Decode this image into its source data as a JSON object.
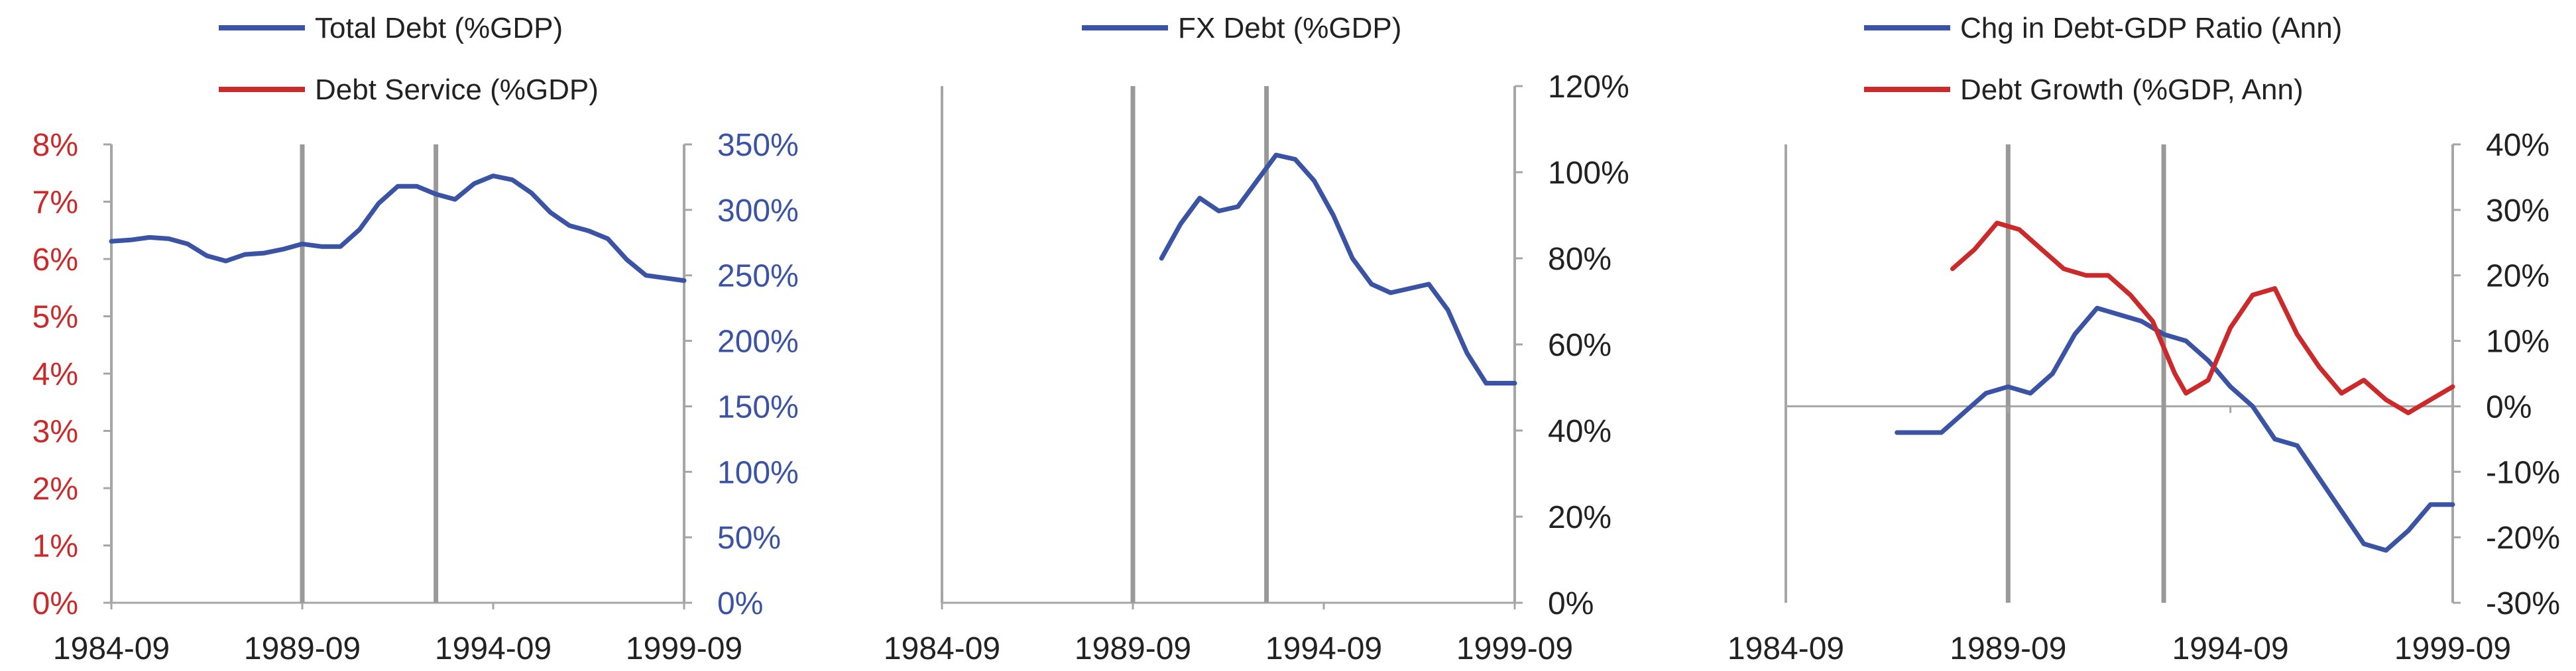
{
  "colors": {
    "blue": "#3b53a4",
    "red": "#cc2a2a",
    "axis": "#a6a6a6",
    "event": "#999999",
    "text": "#222222"
  },
  "chart_data": [
    {
      "type": "line",
      "title": "",
      "legend": {
        "placement": "top",
        "items": [
          {
            "label": "Total Debt (%GDP)",
            "color": "#3b53a4"
          },
          {
            "label": "Debt Service (%GDP)",
            "color": "#cc2a2a"
          }
        ]
      },
      "x_ticks": [
        "1984-09",
        "1989-09",
        "1994-09",
        "1999-09"
      ],
      "x_range": [
        "1984-09",
        "1999-09"
      ],
      "event_lines": [
        "1989-09",
        "1993-03"
      ],
      "y_left": {
        "range": [
          0,
          8
        ],
        "ticks": [
          "0%",
          "1%",
          "2%",
          "3%",
          "4%",
          "5%",
          "6%",
          "7%",
          "8%"
        ],
        "color": "#cc2a2a"
      },
      "y_right": {
        "range": [
          0,
          350
        ],
        "ticks": [
          "0%",
          "50%",
          "100%",
          "150%",
          "200%",
          "250%",
          "300%",
          "350%"
        ],
        "color": "#3b53a4"
      },
      "series": [
        {
          "name": "Total Debt (%GDP)",
          "axis": "right",
          "color": "#3b53a4",
          "points": [
            [
              "1984-09",
              276
            ],
            [
              "1985-03",
              277
            ],
            [
              "1985-09",
              279
            ],
            [
              "1986-03",
              278
            ],
            [
              "1986-09",
              274
            ],
            [
              "1987-03",
              265
            ],
            [
              "1987-09",
              261
            ],
            [
              "1988-03",
              266
            ],
            [
              "1988-09",
              267
            ],
            [
              "1989-03",
              270
            ],
            [
              "1989-09",
              274
            ],
            [
              "1990-03",
              272
            ],
            [
              "1990-09",
              272
            ],
            [
              "1991-03",
              285
            ],
            [
              "1991-09",
              305
            ],
            [
              "1992-03",
              318
            ],
            [
              "1992-09",
              318
            ],
            [
              "1993-03",
              312
            ],
            [
              "1993-09",
              308
            ],
            [
              "1994-03",
              320
            ],
            [
              "1994-09",
              326
            ],
            [
              "1995-03",
              323
            ],
            [
              "1995-09",
              313
            ],
            [
              "1996-03",
              298
            ],
            [
              "1996-09",
              288
            ],
            [
              "1997-03",
              284
            ],
            [
              "1997-09",
              278
            ],
            [
              "1998-03",
              262
            ],
            [
              "1998-09",
              250
            ],
            [
              "1999-03",
              248
            ],
            [
              "1999-09",
              246
            ]
          ]
        }
      ]
    },
    {
      "type": "line",
      "title": "",
      "legend": {
        "placement": "top",
        "items": [
          {
            "label": "FX Debt (%GDP)",
            "color": "#3b53a4"
          }
        ]
      },
      "x_ticks": [
        "1984-09",
        "1989-09",
        "1994-09",
        "1999-09"
      ],
      "x_range": [
        "1984-09",
        "1999-09"
      ],
      "event_lines": [
        "1989-09",
        "1993-03"
      ],
      "y_right": {
        "range": [
          0,
          120
        ],
        "ticks": [
          "0%",
          "20%",
          "40%",
          "60%",
          "80%",
          "100%",
          "120%"
        ],
        "color": "#222222"
      },
      "series": [
        {
          "name": "FX Debt (%GDP)",
          "axis": "right",
          "color": "#3b53a4",
          "points": [
            [
              "1990-06",
              80
            ],
            [
              "1990-12",
              88
            ],
            [
              "1991-06",
              94
            ],
            [
              "1991-12",
              91
            ],
            [
              "1992-06",
              92
            ],
            [
              "1992-12",
              98
            ],
            [
              "1993-06",
              104
            ],
            [
              "1993-12",
              103
            ],
            [
              "1994-06",
              98
            ],
            [
              "1994-12",
              90
            ],
            [
              "1995-06",
              80
            ],
            [
              "1995-12",
              74
            ],
            [
              "1996-06",
              72
            ],
            [
              "1996-12",
              73
            ],
            [
              "1997-06",
              74
            ],
            [
              "1997-12",
              68
            ],
            [
              "1998-06",
              58
            ],
            [
              "1998-12",
              51
            ],
            [
              "1999-09",
              51
            ]
          ]
        }
      ]
    },
    {
      "type": "line",
      "title": "",
      "legend": {
        "placement": "top",
        "items": [
          {
            "label": "Chg in Debt-GDP Ratio (Ann)",
            "color": "#3b53a4"
          },
          {
            "label": "Debt Growth (%GDP, Ann)",
            "color": "#cc2a2a"
          }
        ]
      },
      "x_ticks": [
        "1984-09",
        "1989-09",
        "1994-09",
        "1999-09"
      ],
      "x_range": [
        "1984-09",
        "1999-09"
      ],
      "event_lines": [
        "1989-09",
        "1993-03"
      ],
      "y_right": {
        "range": [
          -30,
          40
        ],
        "ticks": [
          "-30%",
          "-20%",
          "-10%",
          "0%",
          "10%",
          "20%",
          "30%",
          "40%"
        ],
        "color": "#222222"
      },
      "series": [
        {
          "name": "Chg in Debt-GDP Ratio (Ann)",
          "axis": "right",
          "color": "#3b53a4",
          "points": [
            [
              "1987-03",
              -4
            ],
            [
              "1987-09",
              -4
            ],
            [
              "1988-03",
              -4
            ],
            [
              "1988-09",
              -1
            ],
            [
              "1989-03",
              2
            ],
            [
              "1989-09",
              3
            ],
            [
              "1990-03",
              2
            ],
            [
              "1990-09",
              5
            ],
            [
              "1991-03",
              11
            ],
            [
              "1991-09",
              15
            ],
            [
              "1992-03",
              14
            ],
            [
              "1992-09",
              13
            ],
            [
              "1993-03",
              11
            ],
            [
              "1993-09",
              10
            ],
            [
              "1994-03",
              7
            ],
            [
              "1994-09",
              3
            ],
            [
              "1995-03",
              0
            ],
            [
              "1995-09",
              -5
            ],
            [
              "1996-03",
              -6
            ],
            [
              "1996-09",
              -11
            ],
            [
              "1997-03",
              -16
            ],
            [
              "1997-09",
              -21
            ],
            [
              "1998-03",
              -22
            ],
            [
              "1998-09",
              -19
            ],
            [
              "1999-03",
              -15
            ],
            [
              "1999-09",
              -15
            ]
          ]
        },
        {
          "name": "Debt Growth (%GDP, Ann)",
          "axis": "right",
          "color": "#cc2a2a",
          "points": [
            [
              "1988-06",
              21
            ],
            [
              "1988-12",
              24
            ],
            [
              "1989-06",
              28
            ],
            [
              "1989-12",
              27
            ],
            [
              "1990-06",
              24
            ],
            [
              "1990-12",
              21
            ],
            [
              "1991-06",
              20
            ],
            [
              "1991-12",
              20
            ],
            [
              "1992-06",
              17
            ],
            [
              "1992-12",
              13
            ],
            [
              "1993-06",
              5
            ],
            [
              "1993-09",
              2
            ],
            [
              "1994-03",
              4
            ],
            [
              "1994-09",
              12
            ],
            [
              "1995-03",
              17
            ],
            [
              "1995-09",
              18
            ],
            [
              "1996-03",
              11
            ],
            [
              "1996-09",
              6
            ],
            [
              "1997-03",
              2
            ],
            [
              "1997-09",
              4
            ],
            [
              "1998-03",
              1
            ],
            [
              "1998-09",
              -1
            ],
            [
              "1999-03",
              1
            ],
            [
              "1999-09",
              3
            ]
          ]
        }
      ]
    }
  ]
}
